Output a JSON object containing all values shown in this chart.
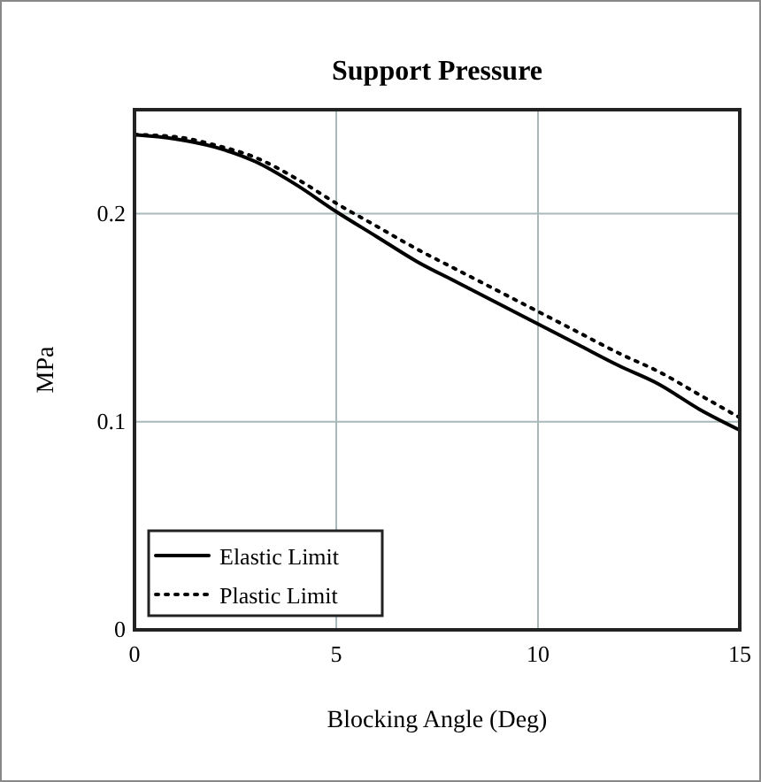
{
  "chart_data": {
    "type": "line",
    "title": "Support Pressure",
    "xlabel": "Blocking Angle (Deg)",
    "ylabel": "MPa",
    "xlim": [
      0,
      15
    ],
    "xticks": [
      0,
      5,
      10,
      15
    ],
    "ylim": [
      0,
      0.25
    ],
    "yticks": [
      0,
      0.1,
      0.2
    ],
    "grid": true,
    "legend": "bottom left",
    "series": [
      {
        "name": "Elastic Limit",
        "color": "#000000",
        "line_style": "solid",
        "x": [
          0,
          1,
          2,
          3,
          4,
          5,
          6,
          7,
          8,
          9,
          10,
          11,
          12,
          13,
          14,
          15
        ],
        "values": [
          0.238,
          0.236,
          0.232,
          0.225,
          0.214,
          0.201,
          0.189,
          0.177,
          0.167,
          0.157,
          0.147,
          0.137,
          0.127,
          0.118,
          0.106,
          0.096
        ]
      },
      {
        "name": "Plastic Limit",
        "color": "#000000",
        "line_style": "dotted",
        "x": [
          0,
          1,
          2,
          3,
          4,
          5,
          6,
          7,
          8,
          9,
          10,
          11,
          12,
          13,
          14,
          15
        ],
        "values": [
          0.238,
          0.237,
          0.233,
          0.227,
          0.217,
          0.205,
          0.194,
          0.183,
          0.173,
          0.163,
          0.153,
          0.143,
          0.133,
          0.124,
          0.113,
          0.102
        ]
      }
    ]
  }
}
